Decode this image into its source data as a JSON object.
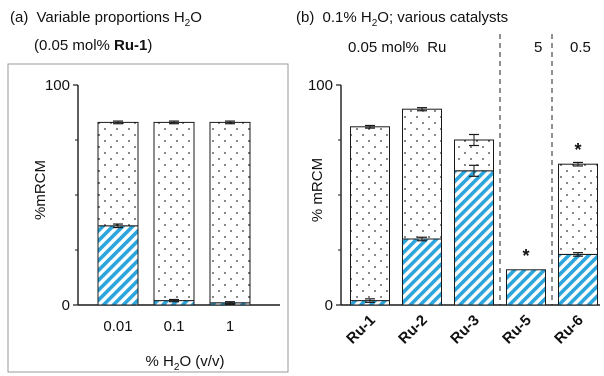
{
  "chart_data": [
    {
      "panel_label": "(a)",
      "title_parts": [
        "Variable proportions H",
        "2",
        "O"
      ],
      "subtitle_parts": [
        "(0.05 mol% ",
        "Ru-1",
        ")"
      ],
      "type": "bar",
      "stacked": true,
      "categories": [
        "0.01",
        "0.1",
        "1"
      ],
      "xlabel_parts": [
        "% H",
        "2",
        "O  (v/v)"
      ],
      "ylabel": "%mRCM",
      "ylim": [
        0,
        100
      ],
      "yticks": [
        "0",
        "100"
      ],
      "series": [
        {
          "key": "hatched",
          "values": [
            36,
            2,
            1
          ],
          "errors": [
            0.8,
            0.5,
            0.5
          ]
        },
        {
          "key": "dotted",
          "values": [
            47,
            81,
            82
          ],
          "errors": [
            0.6,
            0.6,
            0.6
          ]
        }
      ]
    },
    {
      "panel_label": "(b)",
      "title": "0.1% H2O; various catalysts",
      "title_parts": [
        "0.1% H",
        "2",
        "O; various catalysts"
      ],
      "group_labels": [
        "0.05 mol%  Ru",
        "5",
        "0.5"
      ],
      "type": "bar",
      "stacked": true,
      "categories": [
        "Ru-1",
        "Ru-2",
        "Ru-3",
        "Ru-5",
        "Ru-6"
      ],
      "ylabel": "% mRCM",
      "ylim": [
        0,
        100
      ],
      "yticks": [
        "0",
        "100"
      ],
      "annotations": [
        {
          "category": "Ru-5",
          "text": "*"
        },
        {
          "category": "Ru-6",
          "text": "*"
        }
      ],
      "series": [
        {
          "key": "hatched",
          "values": [
            2,
            30,
            61,
            16,
            23
          ],
          "errors": [
            0.8,
            0.8,
            2.5,
            0,
            0.8
          ]
        },
        {
          "key": "dotted",
          "values": [
            79,
            59,
            14,
            0,
            41
          ],
          "errors": [
            0.6,
            0.7,
            2.5,
            0,
            0.8
          ]
        }
      ]
    }
  ],
  "colors": {
    "hatch": "#2ba5dc",
    "axis": "#1a1a1a",
    "dots": "#333333",
    "frame": "#9a9a9a"
  }
}
